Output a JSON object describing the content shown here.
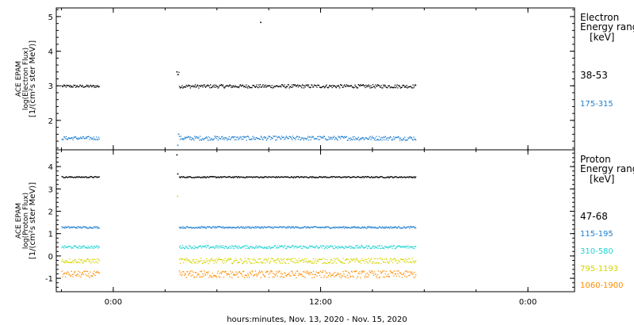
{
  "chart_data": [
    {
      "type": "scatter",
      "panel": "electron",
      "ylabel_lines": [
        "ACE EPAM",
        "log(Electron Flux)",
        "[1/(cm²s ster MeV)]"
      ],
      "yticks": [
        2,
        3,
        4,
        5
      ],
      "ylim": [
        1.15,
        5.25
      ],
      "legend_title": [
        "Electron",
        "Energy ranges",
        "[keV]"
      ],
      "series": [
        {
          "name": "38-53",
          "color": "#000000",
          "segments": [
            {
              "from": -3.0,
              "to": -0.8,
              "base": 3.0,
              "jitter": 0.04
            },
            {
              "from": 3.7,
              "to": 3.8,
              "base": 3.35,
              "jitter": 0.06
            },
            {
              "from": 3.8,
              "to": 17.5,
              "base": 3.0,
              "jitter": 0.05
            }
          ],
          "extra_points": [
            [
              8.5,
              4.85
            ],
            [
              3.65,
              3.42
            ]
          ]
        },
        {
          "name": "175-315",
          "color": "#1f7fd0",
          "segments": [
            {
              "from": -3.0,
              "to": -0.8,
              "base": 1.5,
              "jitter": 0.05
            },
            {
              "from": 3.8,
              "to": 17.5,
              "base": 1.5,
              "jitter": 0.06
            }
          ],
          "extra_points": [
            [
              3.7,
              1.3
            ],
            [
              3.75,
              1.62
            ]
          ]
        }
      ]
    },
    {
      "type": "scatter",
      "panel": "proton",
      "ylabel_lines": [
        "ACE EPAM",
        "log(Proton Flux)",
        "[1/(cm²s ster MeV)]"
      ],
      "yticks": [
        -1,
        0,
        1,
        2,
        3,
        4
      ],
      "ylim": [
        -1.6,
        4.75
      ],
      "legend_title": [
        "Proton",
        "Energy ranges",
        "[keV]"
      ],
      "series": [
        {
          "name": "47-68",
          "color": "#000000",
          "segments": [
            {
              "from": -3.0,
              "to": -0.8,
              "base": 3.55,
              "jitter": 0.03
            },
            {
              "from": 3.8,
              "to": 17.5,
              "base": 3.55,
              "jitter": 0.03
            }
          ],
          "extra_points": [
            [
              3.65,
              4.55
            ],
            [
              3.7,
              3.7
            ]
          ]
        },
        {
          "name": "115-195",
          "color": "#1f7fd0",
          "segments": [
            {
              "from": -3.0,
              "to": -0.8,
              "base": 1.3,
              "jitter": 0.04
            },
            {
              "from": 3.8,
              "to": 17.5,
              "base": 1.3,
              "jitter": 0.04
            }
          ],
          "extra_points": []
        },
        {
          "name": "310-580",
          "color": "#22d3d3",
          "segments": [
            {
              "from": -3.0,
              "to": -0.8,
              "base": 0.42,
              "jitter": 0.06
            },
            {
              "from": 3.8,
              "to": 17.5,
              "base": 0.42,
              "jitter": 0.07
            }
          ],
          "extra_points": []
        },
        {
          "name": "795-1193",
          "color": "#d4d400",
          "segments": [
            {
              "from": -3.0,
              "to": -0.8,
              "base": -0.2,
              "jitter": 0.1
            },
            {
              "from": 3.8,
              "to": 17.5,
              "base": -0.2,
              "jitter": 0.12
            }
          ],
          "extra_points": [
            [
              3.68,
              2.7
            ]
          ]
        },
        {
          "name": "1060-1900",
          "color": "#ff8c00",
          "segments": [
            {
              "from": -3.0,
              "to": -0.8,
              "base": -0.8,
              "jitter": 0.14
            },
            {
              "from": 3.8,
              "to": 17.5,
              "base": -0.8,
              "jitter": 0.16
            }
          ],
          "extra_points": []
        }
      ]
    }
  ],
  "x_axis": {
    "range_hours": [
      -3.3,
      26.7
    ],
    "ticks": [
      {
        "at": 0,
        "label": "0:00"
      },
      {
        "at": 12,
        "label": "12:00"
      },
      {
        "at": 24,
        "label": "0:00"
      }
    ],
    "label": "hours:minutes, Nov. 13, 2020 - Nov. 15, 2020"
  }
}
